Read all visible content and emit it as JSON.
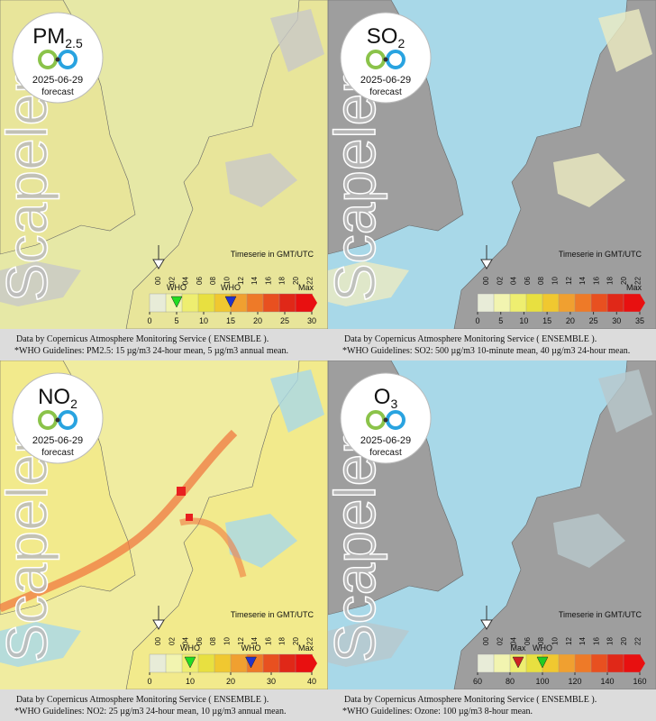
{
  "watermark": "Scapeler",
  "source": "Data by Copernicus Atmosphere Monitoring Service ( ENSEMBLE ).",
  "timeserie": "Timeserie in GMT/UTC",
  "hours": [
    "00",
    "02",
    "04",
    "06",
    "08",
    "10",
    "12",
    "14",
    "16",
    "18",
    "20",
    "22"
  ],
  "palette": [
    "#e8ecd8",
    "#f2f4b0",
    "#eeee70",
    "#e8e040",
    "#f0c830",
    "#f0a030",
    "#ee7a28",
    "#e85020",
    "#e02818",
    "#e81010"
  ],
  "panels": [
    {
      "pollutant": "PM",
      "subscript": "2.5",
      "date": "2025-06-29",
      "mode": "forecast",
      "map": {
        "sea": "#e6e8a6",
        "land": "#e8e59a",
        "patch": "#c8c8c8",
        "plume": null
      },
      "scale": {
        "range": [
          0,
          30
        ],
        "ticks": [
          0,
          5,
          10,
          15,
          20,
          25,
          30
        ],
        "max_label": "Max"
      },
      "who": [
        {
          "label": "WHO",
          "value": 5,
          "color": "#22dd22"
        },
        {
          "label": "WHO",
          "value": 15,
          "color": "#2233cc"
        }
      ],
      "note": "*WHO Guidelines: PM2.5: 15 µg/m3 24-hour mean, 5 µg/m3 annual mean."
    },
    {
      "pollutant": "SO",
      "subscript": "2",
      "date": "2025-06-29",
      "mode": "forecast",
      "map": {
        "sea": "#a8d8e8",
        "land": "#9e9e9e",
        "patch": "#ecebc0",
        "plume": null
      },
      "scale": {
        "range": [
          0,
          35
        ],
        "ticks": [
          0,
          5,
          10,
          15,
          20,
          25,
          30,
          35
        ],
        "max_label": "Max"
      },
      "who": [],
      "note": "*WHO Guidelines: SO2: 500 µg/m3 10-minute mean, 40 µg/m3 24-hour mean."
    },
    {
      "pollutant": "NO",
      "subscript": "2",
      "date": "2025-06-29",
      "mode": "forecast",
      "map": {
        "sea": "#f0eca0",
        "land": "#f2ea8c",
        "patch": "#a8d8e8",
        "plume": "#f07a40"
      },
      "scale": {
        "range": [
          0,
          40
        ],
        "ticks": [
          0,
          10,
          20,
          30,
          40
        ],
        "max_label": "Max"
      },
      "who": [
        {
          "label": "WHO",
          "value": 10,
          "color": "#22dd22"
        },
        {
          "label": "WHO",
          "value": 25,
          "color": "#2233cc"
        }
      ],
      "note": "*WHO Guidelines: NO2: 25 µg/m3 24-hour mean, 10 µg/m3 annual mean."
    },
    {
      "pollutant": "O",
      "subscript": "3",
      "date": "2025-06-29",
      "mode": "forecast",
      "map": {
        "sea": "#a8d8e8",
        "land": "#9e9e9e",
        "patch": "#b8c8cc",
        "plume": null
      },
      "scale": {
        "range": [
          60,
          160
        ],
        "ticks": [
          60,
          80,
          100,
          120,
          140,
          160
        ],
        "max_label": null
      },
      "who": [
        {
          "label": "Max",
          "value": 85,
          "color": "#cc2222"
        },
        {
          "label": "WHO",
          "value": 100,
          "color": "#22cc22"
        }
      ],
      "note": "*WHO Guidelines: Ozone: 100 µg/m3 8-hour mean."
    }
  ]
}
